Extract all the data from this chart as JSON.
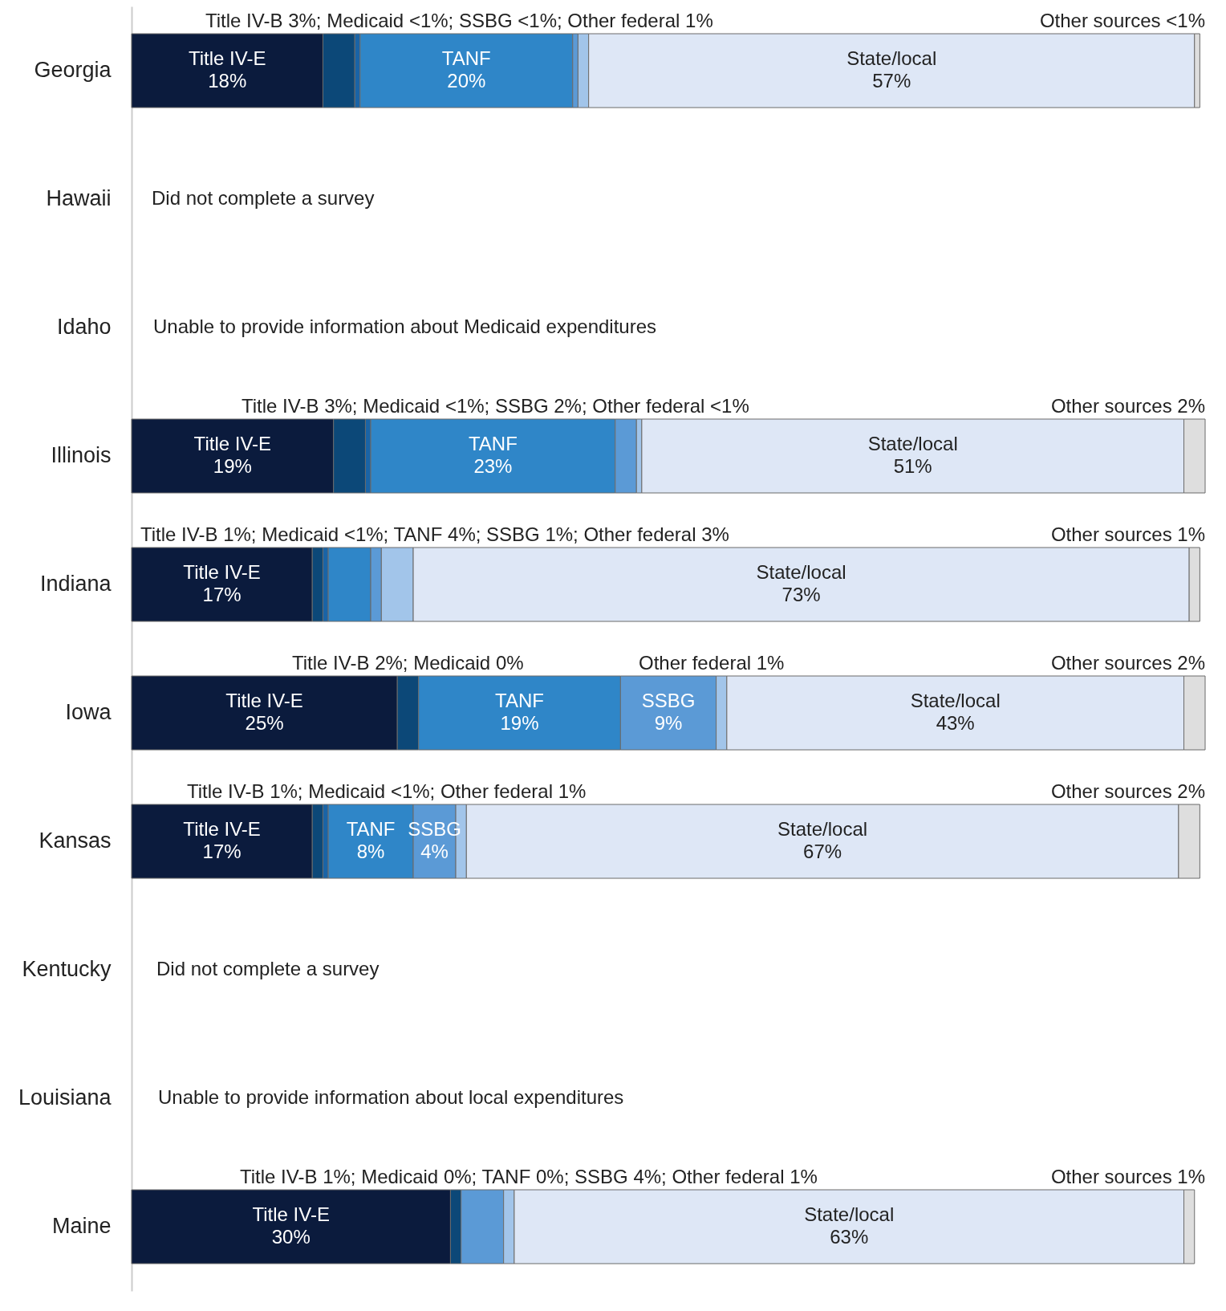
{
  "chart_data": {
    "type": "bar",
    "orientation": "horizontal",
    "stacked": true,
    "legend": false,
    "categories": [
      "Georgia",
      "Hawaii",
      "Idaho",
      "Illinois",
      "Indiana",
      "Iowa",
      "Kansas",
      "Kentucky",
      "Louisiana",
      "Maine"
    ],
    "series": [
      {
        "name": "Title IV-E",
        "color": "#0b1b3d",
        "values": [
          18,
          null,
          null,
          19,
          17,
          25,
          17,
          null,
          null,
          30
        ],
        "value_labels": [
          "18%",
          null,
          null,
          "19%",
          "17%",
          "25%",
          "17%",
          null,
          null,
          "30%"
        ]
      },
      {
        "color": "#0c4878",
        "values": [
          3,
          null,
          null,
          3,
          1,
          2,
          1,
          null,
          null,
          1
        ]
      },
      {
        "color": "#1a64a6",
        "values": [
          0.5,
          null,
          null,
          0.5,
          0.5,
          0,
          0.5,
          null,
          null,
          0
        ]
      },
      {
        "name": "TANF",
        "color": "#2f86c8",
        "values": [
          20,
          null,
          null,
          23,
          4,
          19,
          8,
          null,
          null,
          0
        ],
        "value_labels": [
          "20%",
          null,
          null,
          "23%",
          null,
          "19%",
          "8%",
          null,
          null,
          null
        ]
      },
      {
        "name": "SSBG",
        "color": "#5b9ad6",
        "values": [
          0.5,
          null,
          null,
          2,
          1,
          9,
          4,
          null,
          null,
          4
        ],
        "value_labels": [
          null,
          null,
          null,
          null,
          null,
          "9%",
          "4%",
          null,
          null,
          null
        ]
      },
      {
        "color": "#a2c5ea",
        "values": [
          1,
          null,
          null,
          0.5,
          3,
          1,
          1,
          null,
          null,
          1
        ]
      },
      {
        "name": "State/local",
        "color": "#dee7f6",
        "values": [
          57,
          null,
          null,
          51,
          73,
          43,
          67,
          null,
          null,
          63
        ],
        "value_labels": [
          "57%",
          null,
          null,
          "51%",
          "73%",
          "43%",
          "67%",
          null,
          null,
          "63%"
        ]
      },
      {
        "color": "#dedede",
        "values": [
          0.5,
          null,
          null,
          2,
          1,
          2,
          2,
          null,
          null,
          1
        ]
      }
    ],
    "annotations": [
      "Title IV-B 3%; Medicaid <1%; SSBG <1%; Other federal 1%",
      "Other sources <1%",
      "Did not complete a survey",
      "Unable to provide information about Medicaid expenditures",
      "Title IV-B 3%; Medicaid <1%; SSBG 2%; Other federal <1%",
      "Other sources 2%",
      "Title IV-B 1%; Medicaid <1%; TANF 4%; SSBG 1%; Other federal 3%",
      "Other sources 1%",
      "Title IV-B 2%; Medicaid 0%",
      "Other federal 1%",
      "Other sources 2%",
      "Title IV-B 1%; Medicaid <1%; Other federal 1%",
      "Other sources 2%",
      "Did not complete a survey",
      "Unable to provide information about local expenditures",
      "Title IV-B 1%; Medicaid 0%; TANF 0%; SSBG 4%; Other federal 1%",
      "Other sources 1%"
    ]
  }
}
